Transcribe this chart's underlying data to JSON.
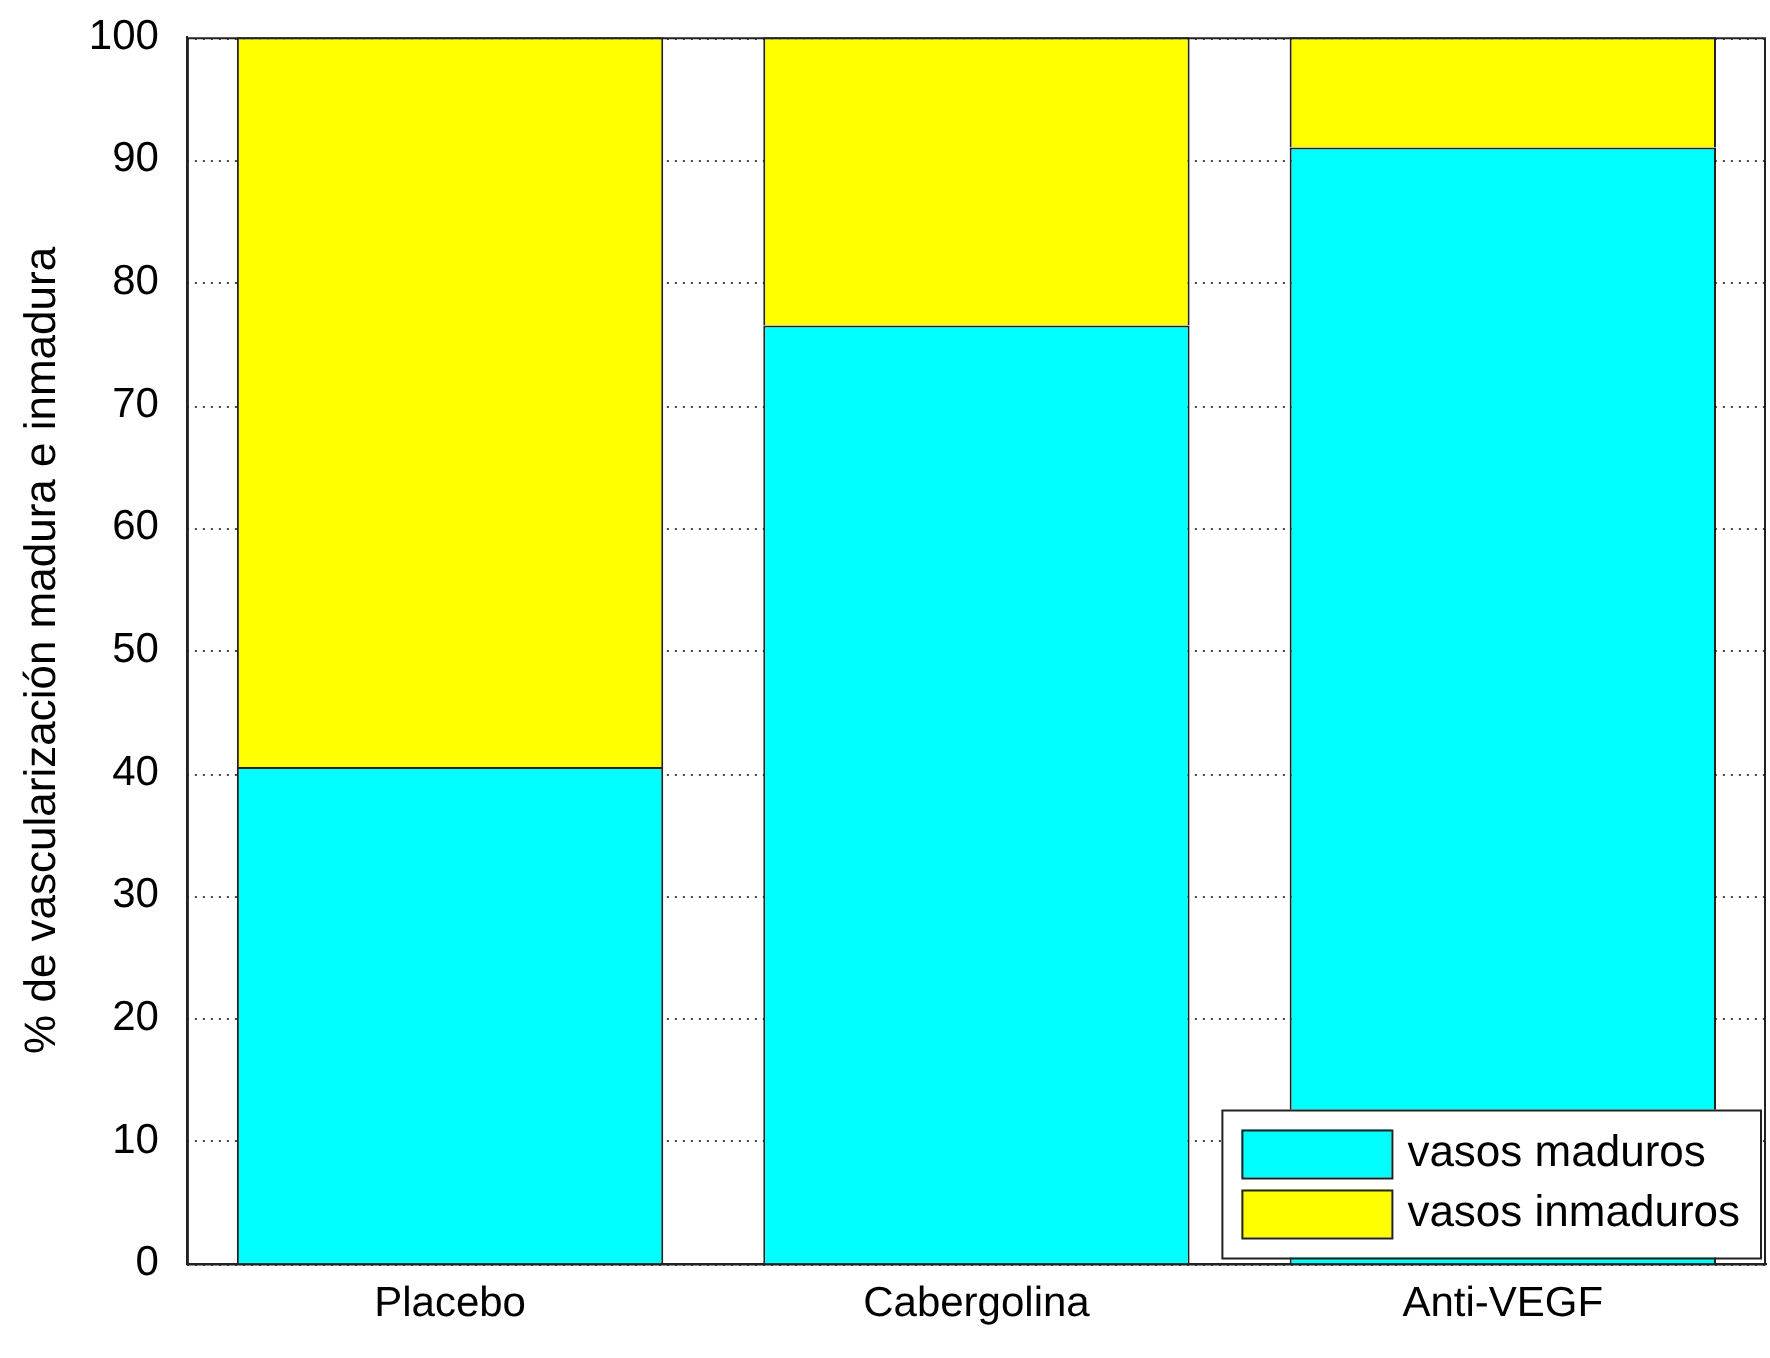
{
  "chart_data": {
    "type": "bar",
    "ylabel": "% de vascularización madura e inmadura",
    "categories": [
      "Placebo",
      "Cabergolina",
      "Anti-VEGF"
    ],
    "stacked": true,
    "series": [
      {
        "name": "vasos maduros",
        "color": "#00ffff",
        "values": [
          40.5,
          76.5,
          91
        ]
      },
      {
        "name": "vasos inmaduros",
        "color": "#ffff00",
        "values": [
          59.5,
          23.5,
          9
        ]
      }
    ],
    "ylim": [
      0,
      100
    ],
    "yticks": [
      0,
      10,
      20,
      30,
      40,
      50,
      60,
      70,
      80,
      90,
      100
    ],
    "grid": "y",
    "legend": "bottom right"
  }
}
